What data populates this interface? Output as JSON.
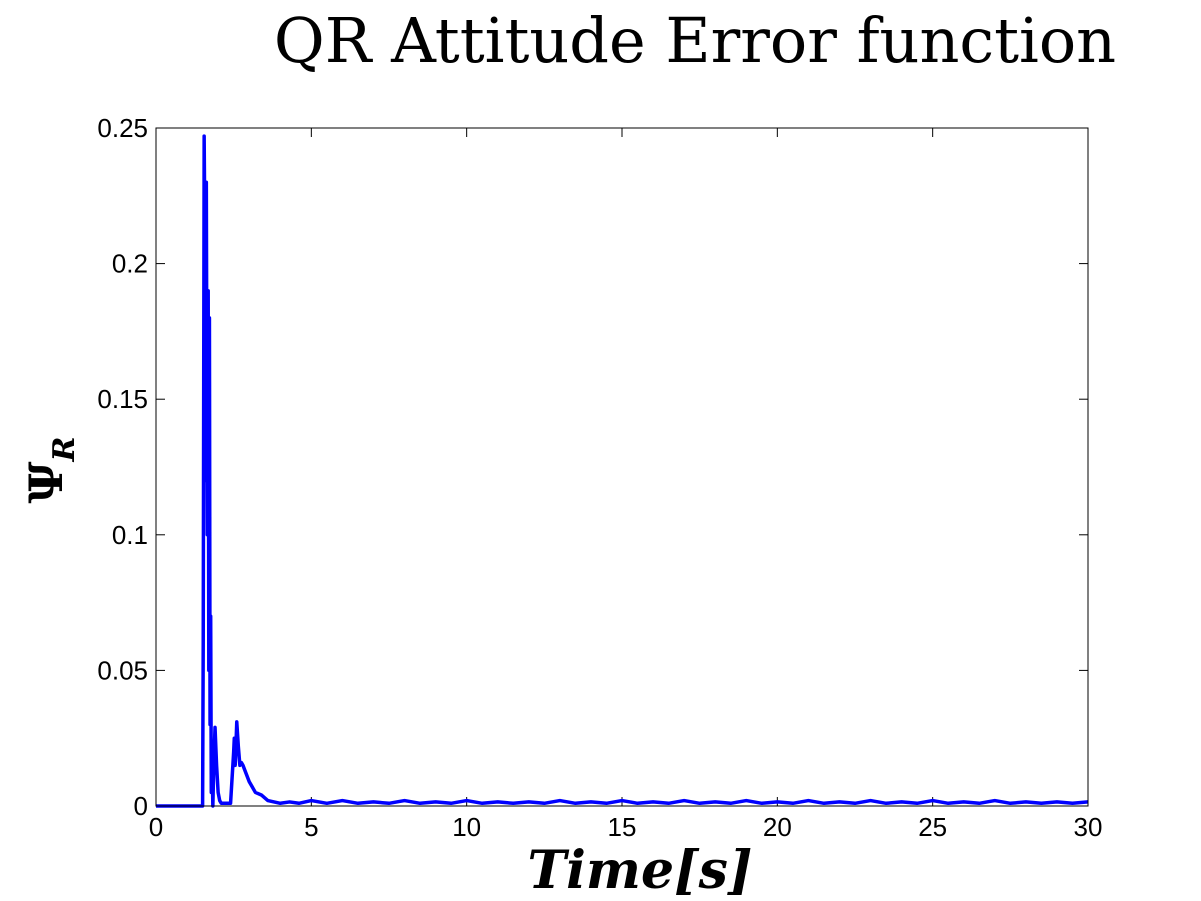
{
  "chart_data": {
    "type": "line",
    "title": "QR Attitude Error function",
    "xlabel": "Time[s]",
    "ylabel": "Ψ",
    "ylabel_sub": "R",
    "xlim": [
      0,
      30
    ],
    "ylim": [
      0,
      0.25
    ],
    "xticks": [
      0,
      5,
      10,
      15,
      20,
      25,
      30
    ],
    "yticks": [
      0,
      0.05,
      0.1,
      0.15,
      0.2,
      0.25
    ],
    "xtick_labels": [
      "0",
      "5",
      "10",
      "15",
      "20",
      "25",
      "30"
    ],
    "ytick_labels": [
      "0",
      "0.05",
      "0.1",
      "0.15",
      "0.2",
      "0.25"
    ],
    "grid": false,
    "series": [
      {
        "color": "#0000ff",
        "x": [
          0,
          1.5,
          1.52,
          1.55,
          1.58,
          1.6,
          1.62,
          1.65,
          1.68,
          1.7,
          1.72,
          1.74,
          1.76,
          1.78,
          1.8,
          1.83,
          1.86,
          1.9,
          1.95,
          2.0,
          2.05,
          2.1,
          2.2,
          2.3,
          2.4,
          2.5,
          2.52,
          2.55,
          2.6,
          2.65,
          2.7,
          2.75,
          2.8,
          2.9,
          3.0,
          3.1,
          3.2,
          3.4,
          3.6,
          3.8,
          4.0,
          4.3,
          4.6,
          5.0,
          5.5,
          6.0,
          6.5,
          7.0,
          7.5,
          8.0,
          8.5,
          9.0,
          9.5,
          10.0,
          10.5,
          11.0,
          11.5,
          12.0,
          12.5,
          13.0,
          13.5,
          14.0,
          14.5,
          15.0,
          15.5,
          16.0,
          16.5,
          17.0,
          17.5,
          18.0,
          18.5,
          19.0,
          19.5,
          20.0,
          20.5,
          21.0,
          21.5,
          22.0,
          22.5,
          23.0,
          23.5,
          24.0,
          24.5,
          25.0,
          25.5,
          26.0,
          26.5,
          27.0,
          27.5,
          28.0,
          28.5,
          29.0,
          29.5,
          30.0
        ],
        "y": [
          0,
          0,
          0.06,
          0.247,
          0.2,
          0.12,
          0.23,
          0.1,
          0.19,
          0.05,
          0.18,
          0.03,
          0.07,
          0.005,
          0.02,
          0.0,
          0.015,
          0.029,
          0.015,
          0.005,
          0.002,
          0.001,
          0.001,
          0.001,
          0.001,
          0.02,
          0.025,
          0.015,
          0.031,
          0.022,
          0.015,
          0.016,
          0.015,
          0.012,
          0.009,
          0.007,
          0.005,
          0.004,
          0.002,
          0.0015,
          0.001,
          0.0015,
          0.001,
          0.002,
          0.001,
          0.002,
          0.001,
          0.0015,
          0.001,
          0.002,
          0.001,
          0.0015,
          0.001,
          0.002,
          0.001,
          0.0015,
          0.001,
          0.0015,
          0.001,
          0.002,
          0.001,
          0.0015,
          0.001,
          0.002,
          0.001,
          0.0015,
          0.001,
          0.002,
          0.001,
          0.0015,
          0.001,
          0.002,
          0.001,
          0.0015,
          0.001,
          0.002,
          0.001,
          0.0015,
          0.001,
          0.002,
          0.001,
          0.0015,
          0.001,
          0.002,
          0.001,
          0.0015,
          0.001,
          0.002,
          0.001,
          0.0015,
          0.001,
          0.0015,
          0.001,
          0.0015
        ]
      }
    ]
  }
}
